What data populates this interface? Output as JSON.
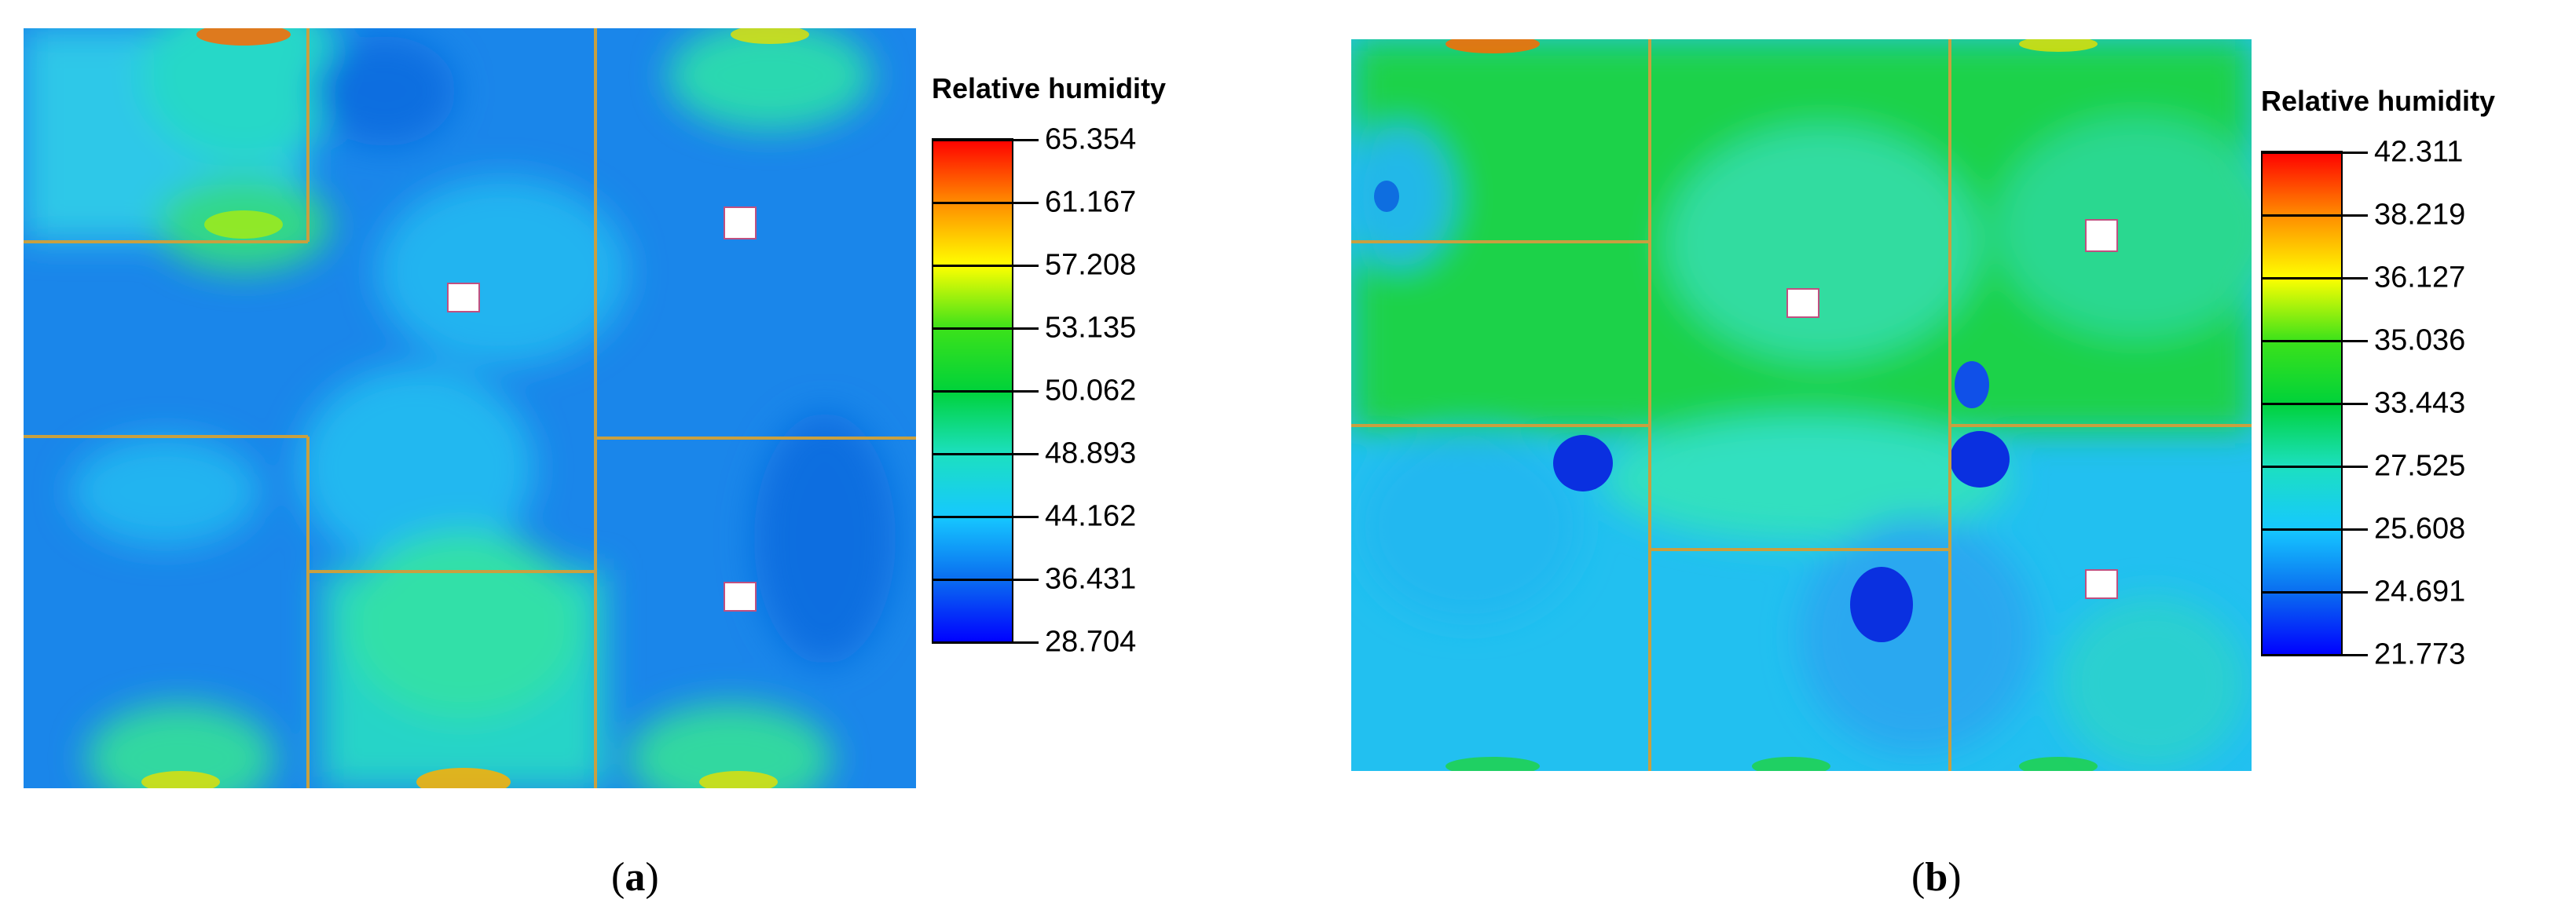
{
  "chart_data": [
    {
      "type": "heatmap",
      "panel_label": "a",
      "caption_open": "(",
      "caption_close": ")",
      "legend_title": "Relative humidity",
      "colorbar_ticks": [
        65.354,
        61.167,
        57.208,
        53.135,
        50.062,
        48.893,
        44.162,
        36.431,
        28.704
      ],
      "colorbar_tick_labels": [
        "65.354",
        "61.167",
        "57.208",
        "53.135",
        "50.062",
        "48.893",
        "44.162",
        "36.431",
        "28.704"
      ],
      "colors": [
        "#ff0000",
        "#ff8c00",
        "#ffff00",
        "#3ce21a",
        "#00d23a",
        "#1ce0c0",
        "#16c8ff",
        "#0a6df0",
        "#0000ff"
      ]
    },
    {
      "type": "heatmap",
      "panel_label": "b",
      "caption_open": "(",
      "caption_close": ")",
      "legend_title": "Relative humidity",
      "colorbar_ticks": [
        42.311,
        38.219,
        36.127,
        35.036,
        33.443,
        27.525,
        25.608,
        24.691,
        21.773
      ],
      "colorbar_tick_labels": [
        "42.311",
        "38.219",
        "36.127",
        "35.036",
        "33.443",
        "27.525",
        "25.608",
        "24.691",
        "21.773"
      ],
      "colors": [
        "#ff0000",
        "#ff8c00",
        "#ffff00",
        "#3ce21a",
        "#00d23a",
        "#1ce0c0",
        "#16c8ff",
        "#0a6df0",
        "#0000ff"
      ]
    }
  ]
}
